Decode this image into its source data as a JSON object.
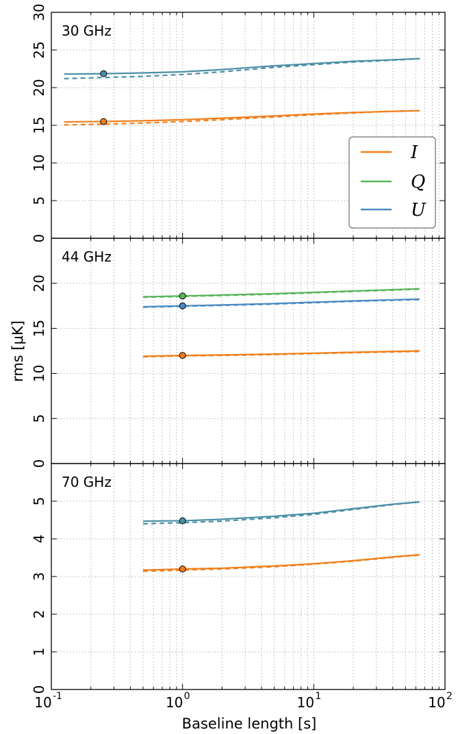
{
  "chart_data": {
    "type": "line",
    "xlabel": "Baseline length [s]",
    "ylabel": "rms [μK]",
    "xscale": "log",
    "xlim": [
      0.1,
      100
    ],
    "x_tick_labels": [
      {
        "base": "10",
        "exp": "-1",
        "value": 0.1
      },
      {
        "base": "10",
        "exp": "0",
        "value": 1
      },
      {
        "base": "10",
        "exp": "1",
        "value": 10
      },
      {
        "base": "10",
        "exp": "2",
        "value": 100
      }
    ],
    "grid": true,
    "legend": {
      "placement": "right",
      "panel": 0,
      "entries": [
        {
          "label": "I",
          "color": "#f07f1a"
        },
        {
          "label": "Q",
          "color": "#5bb55b"
        },
        {
          "label": "U",
          "color": "#4a89c1"
        }
      ]
    },
    "line_styles": [
      "solid",
      "dashed"
    ],
    "panels": [
      {
        "label": "30 GHz",
        "ylim": [
          0,
          30
        ],
        "yticks": [
          0,
          5,
          10,
          15,
          20,
          25,
          30
        ],
        "series": [
          {
            "stokes": "U",
            "color": "#4a8fa6",
            "style": "solid",
            "x": [
              0.125,
              0.25,
              0.5,
              1,
              2,
              5,
              10,
              20,
              40,
              64
            ],
            "y": [
              21.8,
              21.85,
              21.95,
              22.1,
              22.4,
              22.9,
              23.2,
              23.5,
              23.7,
              23.85
            ]
          },
          {
            "stokes": "U",
            "color": "#4a8fa6",
            "style": "dashed",
            "x": [
              0.125,
              0.25,
              0.5,
              1,
              2,
              5,
              10,
              20,
              40,
              64
            ],
            "y": [
              21.2,
              21.35,
              21.5,
              21.75,
              22.1,
              22.7,
              23.05,
              23.4,
              23.65,
              23.85
            ]
          },
          {
            "stokes": "I",
            "color": "#f07f1a",
            "style": "solid",
            "x": [
              0.125,
              0.25,
              0.5,
              1,
              2,
              5,
              10,
              20,
              40,
              64
            ],
            "y": [
              15.45,
              15.5,
              15.6,
              15.75,
              15.95,
              16.25,
              16.5,
              16.7,
              16.85,
              16.95
            ]
          },
          {
            "stokes": "I",
            "color": "#f07f1a",
            "style": "dashed",
            "x": [
              0.125,
              0.25,
              0.5,
              1,
              2,
              5,
              10,
              20,
              40,
              64
            ],
            "y": [
              15.05,
              15.15,
              15.3,
              15.5,
              15.75,
              16.1,
              16.4,
              16.65,
              16.85,
              16.95
            ]
          }
        ],
        "markers": [
          {
            "x": 0.25,
            "y": 21.85,
            "color": "#4a8fa6"
          },
          {
            "x": 0.25,
            "y": 15.5,
            "color": "#f07f1a"
          }
        ]
      },
      {
        "label": "44 GHz",
        "ylim": [
          0,
          25
        ],
        "yticks": [
          0,
          5,
          10,
          15,
          20
        ],
        "series": [
          {
            "stokes": "Q",
            "color": "#5bb55b",
            "style": "solid",
            "x": [
              0.5,
              1,
              2,
              5,
              10,
              20,
              64
            ],
            "y": [
              18.5,
              18.6,
              18.7,
              18.85,
              19.0,
              19.15,
              19.4
            ]
          },
          {
            "stokes": "Q",
            "color": "#5bb55b",
            "style": "dashed",
            "x": [
              0.5,
              1,
              2,
              5,
              10,
              20,
              64
            ],
            "y": [
              18.45,
              18.55,
              18.65,
              18.8,
              18.95,
              19.1,
              19.35
            ]
          },
          {
            "stokes": "U",
            "color": "#4a89c1",
            "style": "solid",
            "x": [
              0.5,
              1,
              2,
              5,
              10,
              20,
              64
            ],
            "y": [
              17.4,
              17.5,
              17.6,
              17.75,
              17.9,
              18.05,
              18.25
            ]
          },
          {
            "stokes": "U",
            "color": "#4a89c1",
            "style": "dashed",
            "x": [
              0.5,
              1,
              2,
              5,
              10,
              20,
              64
            ],
            "y": [
              17.35,
              17.45,
              17.55,
              17.7,
              17.85,
              18.0,
              18.2
            ]
          },
          {
            "stokes": "I",
            "color": "#f07f1a",
            "style": "solid",
            "x": [
              0.5,
              1,
              2,
              5,
              10,
              20,
              64
            ],
            "y": [
              11.9,
              12.0,
              12.05,
              12.15,
              12.25,
              12.35,
              12.5
            ]
          },
          {
            "stokes": "I",
            "color": "#f07f1a",
            "style": "dashed",
            "x": [
              0.5,
              1,
              2,
              5,
              10,
              20,
              64
            ],
            "y": [
              11.85,
              11.95,
              12.0,
              12.1,
              12.2,
              12.3,
              12.45
            ]
          }
        ],
        "markers": [
          {
            "x": 1,
            "y": 18.6,
            "color": "#5bb55b"
          },
          {
            "x": 1,
            "y": 17.5,
            "color": "#4a89c1"
          },
          {
            "x": 1,
            "y": 12.0,
            "color": "#f07f1a"
          }
        ]
      },
      {
        "label": "70 GHz",
        "ylim": [
          0,
          6
        ],
        "yticks": [
          0,
          1,
          2,
          3,
          4,
          5
        ],
        "series": [
          {
            "stokes": "U",
            "color": "#4a8fa6",
            "style": "solid",
            "x": [
              0.5,
              1,
              2,
              5,
              10,
              20,
              40,
              64
            ],
            "y": [
              4.47,
              4.48,
              4.52,
              4.6,
              4.68,
              4.8,
              4.92,
              4.98
            ]
          },
          {
            "stokes": "U",
            "color": "#4a8fa6",
            "style": "dashed",
            "x": [
              0.5,
              1,
              2,
              5,
              10,
              20,
              40,
              64
            ],
            "y": [
              4.4,
              4.43,
              4.47,
              4.56,
              4.65,
              4.78,
              4.91,
              4.98
            ]
          },
          {
            "stokes": "I",
            "color": "#f07f1a",
            "style": "solid",
            "x": [
              0.5,
              1,
              2,
              5,
              10,
              20,
              40,
              64
            ],
            "y": [
              3.17,
              3.2,
              3.22,
              3.28,
              3.34,
              3.42,
              3.52,
              3.58
            ]
          },
          {
            "stokes": "I",
            "color": "#f07f1a",
            "style": "dashed",
            "x": [
              0.5,
              1,
              2,
              5,
              10,
              20,
              40,
              64
            ],
            "y": [
              3.14,
              3.17,
              3.2,
              3.26,
              3.33,
              3.41,
              3.51,
              3.57
            ]
          }
        ],
        "markers": [
          {
            "x": 1,
            "y": 4.48,
            "color": "#4a8fa6"
          },
          {
            "x": 1,
            "y": 3.2,
            "color": "#f07f1a"
          }
        ]
      }
    ]
  }
}
